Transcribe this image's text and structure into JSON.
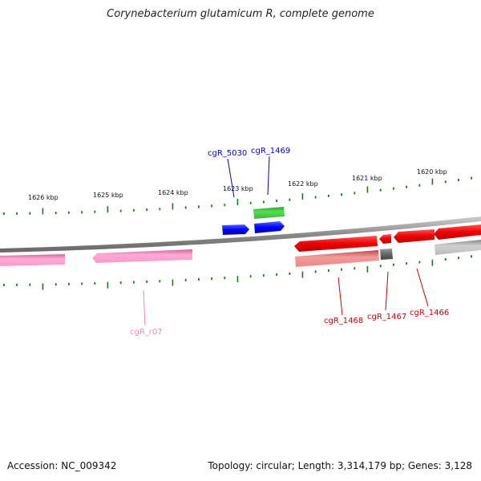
{
  "header": {
    "title": "Corynebacterium glutamicum R, complete genome"
  },
  "footer": {
    "accession": "Accession: NC_009342",
    "summary": "Topology: circular; Length: 3,314,179 bp; Genes: 3,128"
  },
  "map": {
    "ticks": [
      {
        "label": "1626 kbp"
      },
      {
        "label": "1625 kbp"
      },
      {
        "label": "1624 kbp"
      },
      {
        "label": "1623 kbp"
      },
      {
        "label": "1622 kbp"
      },
      {
        "label": "1621 kbp"
      },
      {
        "label": "1620 kbp"
      }
    ],
    "gene_labels": [
      {
        "text": "cgR_5030",
        "color": "#0000cc"
      },
      {
        "text": "cgR_1469",
        "color": "#0000cc"
      },
      {
        "text": "cgR_r07",
        "color": "#ee88bb"
      },
      {
        "text": "cgR_1468",
        "color": "#cc0000"
      },
      {
        "text": "cgR_1467",
        "color": "#cc0000"
      },
      {
        "text": "cgR_1466",
        "color": "#cc0000"
      }
    ],
    "colors": {
      "backbone": "#888888",
      "ticks": "#1a7a1a",
      "cds_forward": "#0000ff",
      "rna_forward": "#33bb33",
      "cds_reverse": "#ee0000",
      "rna_reverse": "#ff99cc",
      "gene_light": "#ee8888",
      "gene_dark": "#666666",
      "gene_gray": "#bbbbbb"
    }
  }
}
